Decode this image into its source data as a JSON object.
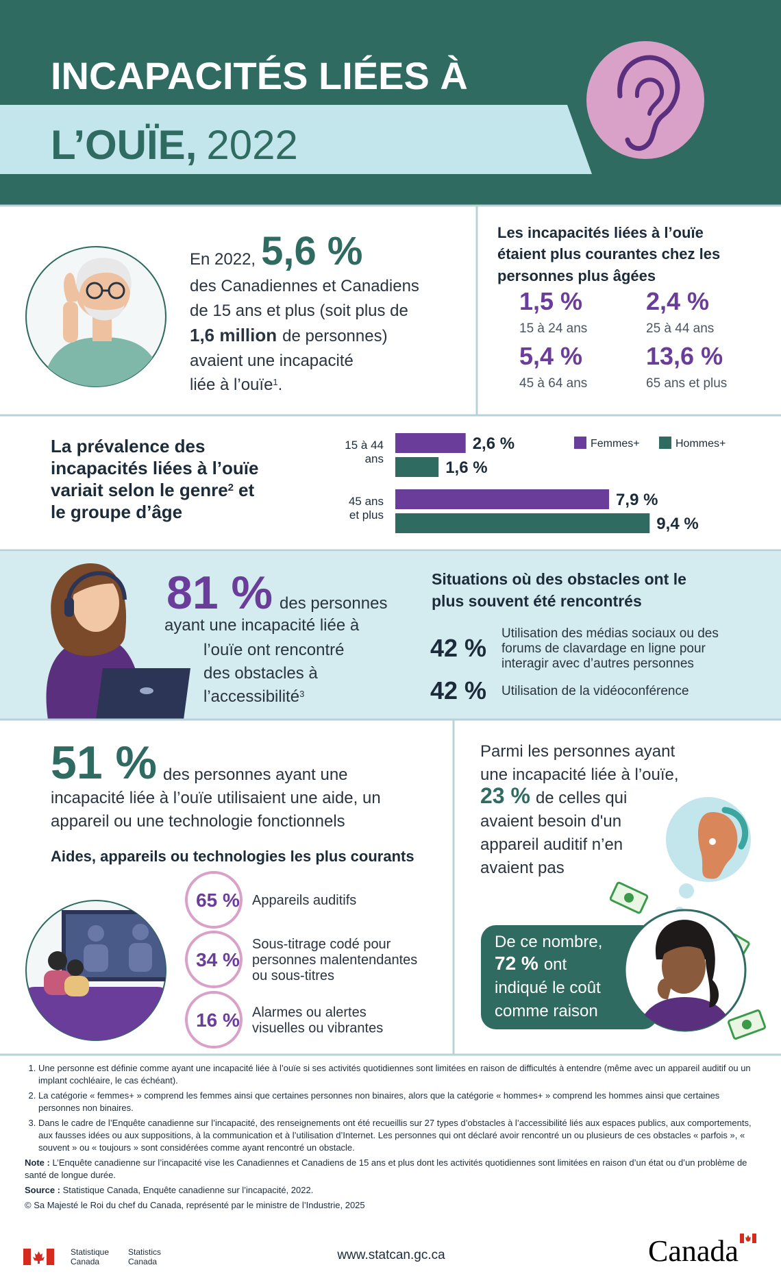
{
  "header": {
    "title_line1": "INCAPACITÉS LIÉES À",
    "title_line2_bold": "L’OUÏE,",
    "title_line2_light": "2022"
  },
  "intro": {
    "lead": "En 2022,",
    "stat": "5,6 %",
    "line1": "des Canadiennes et Canadiens",
    "line2": "de 15 ans et plus (soit plus de",
    "line3_bold": "1,6 million",
    "line3_rest": "de personnes)",
    "line4": "avaient une incapacité",
    "line5": "liée à l’ouïe",
    "line5_sup": "1",
    "line5_end": "."
  },
  "age": {
    "title_lines": [
      "Les incapacités liées à l’ouïe",
      "étaient plus courantes chez les",
      "personnes plus âgées"
    ],
    "groups": [
      {
        "value": "1,5 %",
        "label": "15 à 24 ans"
      },
      {
        "value": "2,4 %",
        "label": "25 à 44 ans"
      },
      {
        "value": "5,4 %",
        "label": "45 à 64 ans"
      },
      {
        "value": "13,6 %",
        "label": "65 ans et plus"
      }
    ]
  },
  "gender": {
    "title_lines": [
      "La prévalence des",
      "incapacités liées à l’ouïe",
      "variait selon le genre"
    ],
    "title_sup": "2",
    "title_line3_end": "et",
    "title_line4": "le groupe d’âge",
    "groups": [
      {
        "label_lines": [
          "15 à 44",
          "ans"
        ]
      },
      {
        "label_lines": [
          "45 ans",
          "et plus"
        ]
      }
    ],
    "series": [
      {
        "name": "Femmes+",
        "color": "#6a3d9a",
        "values": [
          2.6,
          7.9
        ],
        "value_labels": [
          "2,6 %",
          "7,9 %"
        ]
      },
      {
        "name": "Hommes+",
        "color": "#2f6b61",
        "values": [
          1.6,
          9.4
        ],
        "value_labels": [
          "1,6 %",
          "9,4 %"
        ]
      }
    ]
  },
  "barriers": {
    "stat": "81 %",
    "line1": "des personnes",
    "line2": "ayant une incapacité liée à",
    "line3": "l’ouïe ont rencontré",
    "line4": "des obstacles à",
    "line5": "l’accessibilité",
    "line5_sup": "3",
    "title_lines": [
      "Situations où des obstacles ont le",
      "plus souvent été rencontrés"
    ],
    "items": [
      {
        "value": "42 %",
        "text_lines": [
          "Utilisation des médias sociaux ou des",
          "forums de clavardage en ligne pour",
          "interagir avec d’autres personnes"
        ]
      },
      {
        "value": "42 %",
        "text_lines": [
          "Utilisation de la vidéoconférence"
        ]
      }
    ]
  },
  "aids": {
    "stat": "51 %",
    "line1": "des personnes ayant une",
    "line2": "incapacité liée à l’ouïe utilisaient une aide, un",
    "line3": "appareil ou une technologie fonctionnels",
    "subtitle": "Aides, appareils ou technologies les plus courants",
    "items": [
      {
        "value": "65 %",
        "text_lines": [
          "Appareils auditifs"
        ]
      },
      {
        "value": "34 %",
        "text_lines": [
          "Sous-titrage codé pour",
          "personnes malentendantes",
          "ou sous-titres"
        ]
      },
      {
        "value": "16 %",
        "text_lines": [
          "Alarmes ou alertes",
          "visuelles ou vibrantes"
        ]
      }
    ]
  },
  "need": {
    "line1": "Parmi les personnes ayant",
    "line2": "une incapacité liée à l’ouïe,",
    "stat": "23 %",
    "stat_rest": "de celles qui",
    "line4": "avaient besoin d'un",
    "line5": "appareil auditif n’en",
    "line6": "avaient pas",
    "cost": {
      "line1": "De ce nombre,",
      "stat": "72 %",
      "stat_rest": "ont",
      "line3": "indiqué le coût",
      "line4": "comme raison"
    }
  },
  "footnotes": {
    "items": [
      "Une personne est définie comme ayant une incapacité liée à l’ouïe si ses activités quotidiennes sont limitées en raison de difficultés à entendre (même avec un appareil auditif ou un implant cochléaire, le cas échéant).",
      "La catégorie « femmes+ » comprend les femmes ainsi que certaines personnes non binaires, alors que la catégorie « hommes+ » comprend les hommes ainsi que certaines personnes non binaires.",
      "Dans le cadre de l’Enquête canadienne sur l’incapacité, des renseignements ont été recueillis sur 27 types d’obstacles à l’accessibilité liés aux espaces publics, aux comportements, aux fausses idées ou aux suppositions, à la communication et à l’utilisation d’Internet. Les personnes qui ont déclaré avoir rencontré un ou plusieurs de ces obstacles « parfois », « souvent » ou « toujours » sont considérées comme ayant rencontré un obstacle."
    ],
    "note_label": "Note :",
    "note": "L’Enquête canadienne sur l’incapacité vise les Canadiennes et Canadiens de 15 ans et plus dont les activités quotidiennes sont limitées en raison d’un état ou d’un problème de santé de longue durée.",
    "source_label": "Source :",
    "source": "Statistique Canada, Enquête canadienne sur l’incapacité, 2022.",
    "copyright": "© Sa Majesté le Roi du chef du Canada, représenté par le ministre de l’Industrie, 2025"
  },
  "footer": {
    "fr_lines": [
      "Statistique",
      "Canada"
    ],
    "en_lines": [
      "Statistics",
      "Canada"
    ],
    "url": "www.statcan.gc.ca",
    "wordmark": "Canada"
  }
}
